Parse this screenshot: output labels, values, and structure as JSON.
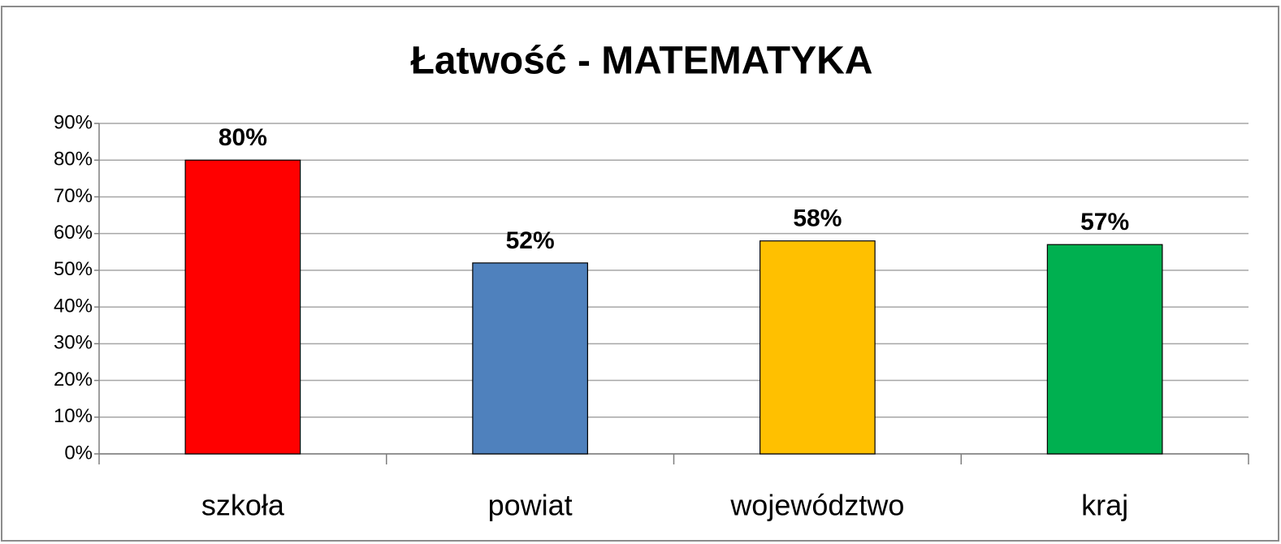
{
  "chart_data": {
    "type": "bar",
    "title": "Łatwość - MATEMATYKA",
    "categories": [
      "szkoła",
      "powiat",
      "województwo",
      "kraj"
    ],
    "values": [
      80,
      52,
      58,
      57
    ],
    "value_labels": [
      "80%",
      "52%",
      "58%",
      "57%"
    ],
    "colors": [
      "#ff0000",
      "#4f81bd",
      "#ffc000",
      "#00b050"
    ],
    "ylim": [
      0,
      90
    ],
    "yticks": [
      {
        "value": 0,
        "label": "0%"
      },
      {
        "value": 10,
        "label": "10%"
      },
      {
        "value": 20,
        "label": "20%"
      },
      {
        "value": 30,
        "label": "30%"
      },
      {
        "value": 40,
        "label": "40%"
      },
      {
        "value": 50,
        "label": "50%"
      },
      {
        "value": 60,
        "label": "60%"
      },
      {
        "value": 70,
        "label": "70%"
      },
      {
        "value": 80,
        "label": "80%"
      },
      {
        "value": 90,
        "label": "90%"
      }
    ],
    "grid": true
  }
}
